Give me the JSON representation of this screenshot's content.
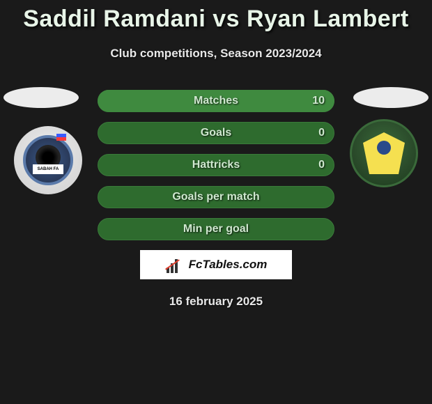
{
  "title": "Saddil Ramdani vs Ryan Lambert",
  "subtitle": "Club competitions, Season 2023/2024",
  "date": "16 february 2025",
  "brand": "FcTables.com",
  "colors": {
    "bar_bg": "#2e6b2e",
    "bar_highlight": "#3f8a3f",
    "text": "#cfe8cf",
    "title": "#e8f5e8"
  },
  "bars": [
    {
      "label": "Matches",
      "value": "10",
      "fill_pct": 100,
      "fill_color": "#3f8a3f"
    },
    {
      "label": "Goals",
      "value": "0",
      "fill_pct": 0,
      "fill_color": "#3f8a3f"
    },
    {
      "label": "Hattricks",
      "value": "0",
      "fill_pct": 0,
      "fill_color": "#3f8a3f"
    },
    {
      "label": "Goals per match",
      "value": "",
      "fill_pct": 0,
      "fill_color": "#3f8a3f"
    },
    {
      "label": "Min per goal",
      "value": "",
      "fill_pct": 0,
      "fill_color": "#3f8a3f"
    }
  ],
  "left_badge": {
    "name": "sabah-fa-badge",
    "banner": "SABAH FA"
  },
  "right_badge": {
    "name": "kuala-lumpur-badge"
  }
}
